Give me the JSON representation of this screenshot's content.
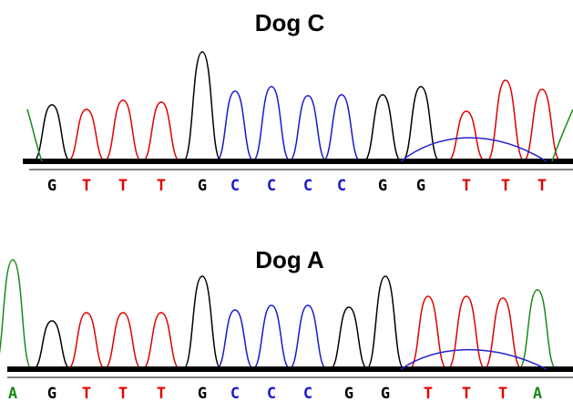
{
  "panels": [
    {
      "title": "Dog C",
      "bases": [
        "G",
        "T",
        "T",
        "T",
        "G",
        "C",
        "C",
        "C",
        "C",
        "G",
        "G",
        "T",
        "T",
        "T"
      ]
    },
    {
      "title": "Dog A",
      "bases": [
        "A",
        "G",
        "T",
        "T",
        "T",
        "G",
        "C",
        "C",
        "C",
        "G",
        "G",
        "T",
        "T",
        "T",
        "A"
      ]
    }
  ]
}
